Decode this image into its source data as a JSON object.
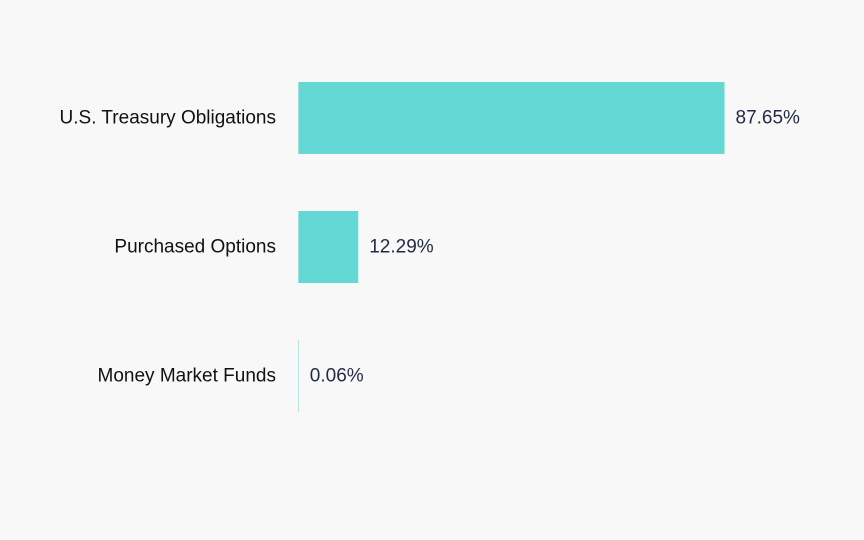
{
  "chart_data": {
    "type": "bar",
    "orientation": "horizontal",
    "categories": [
      "U.S. Treasury Obligations",
      "Purchased Options",
      "Money Market Funds"
    ],
    "values": [
      87.65,
      12.29,
      0.06
    ],
    "value_labels": [
      "87.65%",
      "12.29%",
      "0.06%"
    ],
    "unit": "%",
    "xlim": [
      0,
      87.65
    ],
    "grid": false,
    "legend": "none",
    "title": "",
    "xlabel": "",
    "ylabel": ""
  },
  "colors": {
    "background": "#f8f8f8",
    "bar": "#64d8d4",
    "category_text": "#111111",
    "value_text": "#1f2a44",
    "baseline": "#dde8ea"
  }
}
